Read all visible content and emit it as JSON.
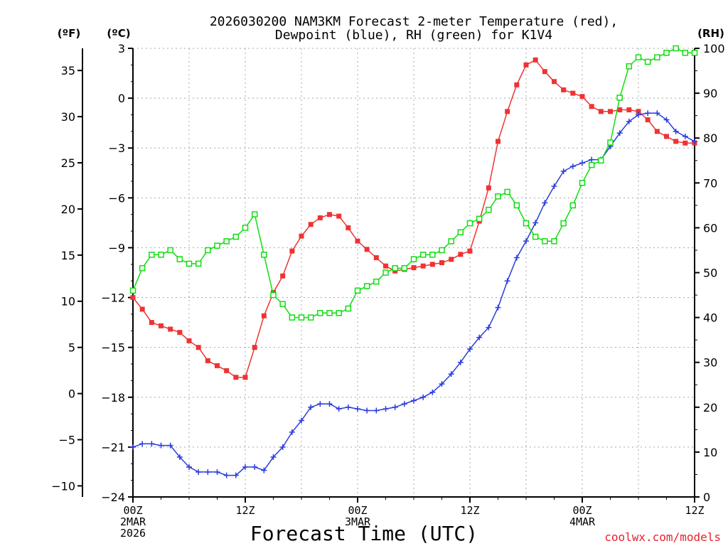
{
  "chart_data": {
    "type": "line",
    "title": "2026030200 NAM3KM Forecast 2-meter Temperature (red),",
    "subtitle": "Dewpoint (blue), RH (green) for K1V4",
    "xlabel": "Forecast Time (UTC)",
    "credit": "coolwx.com/models",
    "units": {
      "fahrenheit": "(ºF)",
      "celsius": "(ºC)",
      "rh": "(RH)"
    },
    "x_hours": [
      0,
      1,
      2,
      3,
      4,
      5,
      6,
      7,
      8,
      9,
      10,
      11,
      12,
      13,
      14,
      15,
      16,
      17,
      18,
      19,
      20,
      21,
      22,
      23,
      24,
      25,
      26,
      27,
      28,
      29,
      30,
      31,
      32,
      33,
      34,
      35,
      36,
      37,
      38,
      39,
      40,
      41,
      42,
      43,
      44,
      45,
      46,
      47,
      48,
      49,
      50,
      51,
      52,
      53,
      54,
      55,
      56,
      57,
      58,
      59,
      60
    ],
    "xlim": [
      0,
      60
    ],
    "x_ticks": [
      {
        "hour": 0,
        "label": "00Z",
        "date1": "2MAR",
        "date2": "2026"
      },
      {
        "hour": 12,
        "label": "12Z",
        "date1": "",
        "date2": ""
      },
      {
        "hour": 24,
        "label": "00Z",
        "date1": "3MAR",
        "date2": ""
      },
      {
        "hour": 36,
        "label": "12Z",
        "date1": "",
        "date2": ""
      },
      {
        "hour": 48,
        "label": "00Z",
        "date1": "4MAR",
        "date2": ""
      },
      {
        "hour": 60,
        "label": "12Z",
        "date1": "",
        "date2": ""
      }
    ],
    "y_celsius": {
      "ylim": [
        -24,
        3
      ],
      "ticks": [
        3,
        0,
        -3,
        -6,
        -9,
        -12,
        -15,
        -18,
        -21,
        -24
      ],
      "tick_labels": [
        "3",
        "0",
        "−3",
        "−6",
        "−9",
        "−12",
        "−15",
        "−18",
        "−21",
        "−24"
      ]
    },
    "y_fahrenheit": {
      "ticks": [
        35,
        30,
        25,
        20,
        15,
        10,
        5,
        0,
        -5,
        -10
      ],
      "tick_labels": [
        "35",
        "30",
        "25",
        "20",
        "15",
        "10",
        "5",
        "0",
        "−5",
        "−10"
      ]
    },
    "y_rh": {
      "ylim": [
        0,
        100
      ],
      "ticks": [
        100,
        90,
        80,
        70,
        60,
        50,
        40,
        30,
        20,
        10,
        0
      ],
      "tick_labels": [
        "100",
        "90",
        "80",
        "70",
        "60",
        "50",
        "40",
        "30",
        "20",
        "10",
        "0"
      ]
    },
    "grid": true,
    "series": [
      {
        "name": "2-meter Temperature",
        "axis": "celsius",
        "color": "#ee3333",
        "marker": "filled-square",
        "values": [
          -12.0,
          -12.7,
          -13.5,
          -13.7,
          -13.9,
          -14.1,
          -14.6,
          -15.0,
          -15.8,
          -16.1,
          -16.4,
          -16.8,
          -16.8,
          -15.0,
          -13.1,
          -11.7,
          -10.7,
          -9.2,
          -8.3,
          -7.6,
          -7.2,
          -7.0,
          -7.1,
          -7.8,
          -8.6,
          -9.1,
          -9.6,
          -10.1,
          -10.4,
          -10.3,
          -10.2,
          -10.1,
          -10.0,
          -9.9,
          -9.7,
          -9.4,
          -9.2,
          -7.4,
          -5.4,
          -2.6,
          -0.8,
          0.8,
          2.0,
          2.3,
          1.6,
          1.0,
          0.5,
          0.3,
          0.1,
          -0.5,
          -0.8,
          -0.8,
          -0.7,
          -0.7,
          -0.8,
          -1.3,
          -2.0,
          -2.3,
          -2.6,
          -2.7,
          -2.7
        ]
      },
      {
        "name": "Dewpoint",
        "axis": "celsius",
        "color": "#2a3ddc",
        "marker": "plus",
        "values": [
          -21.0,
          -20.8,
          -20.8,
          -20.9,
          -20.9,
          -21.6,
          -22.2,
          -22.5,
          -22.5,
          -22.5,
          -22.7,
          -22.7,
          -22.2,
          -22.2,
          -22.4,
          -21.6,
          -21.0,
          -20.1,
          -19.4,
          -18.6,
          -18.4,
          -18.4,
          -18.7,
          -18.6,
          -18.7,
          -18.8,
          -18.8,
          -18.7,
          -18.6,
          -18.4,
          -18.2,
          -18.0,
          -17.7,
          -17.2,
          -16.6,
          -15.9,
          -15.1,
          -14.4,
          -13.8,
          -12.6,
          -11.0,
          -9.6,
          -8.6,
          -7.5,
          -6.3,
          -5.3,
          -4.4,
          -4.1,
          -3.9,
          -3.7,
          -3.7,
          -2.9,
          -2.1,
          -1.4,
          -1.0,
          -0.9,
          -0.9,
          -1.3,
          -2.0,
          -2.3,
          -2.6
        ]
      },
      {
        "name": "RH",
        "axis": "rh",
        "color": "#11dd11",
        "marker": "open-square",
        "values": [
          46,
          51,
          54,
          54,
          55,
          53,
          52,
          52,
          55,
          56,
          57,
          58,
          60,
          63,
          54,
          45,
          43,
          40,
          40,
          40,
          41,
          41,
          41,
          42,
          46,
          47,
          48,
          50,
          51,
          51,
          53,
          54,
          54,
          55,
          57,
          59,
          61,
          62,
          64,
          67,
          68,
          65,
          61,
          58,
          57,
          57,
          61,
          65,
          70,
          74,
          75,
          79,
          89,
          96,
          98,
          97,
          98,
          99,
          100,
          99,
          99
        ]
      }
    ]
  }
}
